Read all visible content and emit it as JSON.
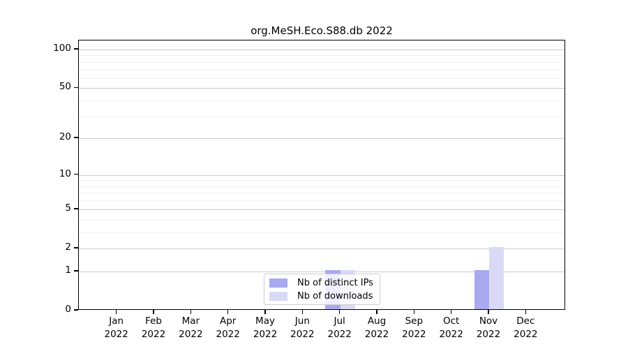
{
  "title": "org.MeSH.Eco.S88.db 2022",
  "chart_data": {
    "type": "bar",
    "title": "org.MeSH.Eco.S88.db 2022",
    "categories": [
      "Jan",
      "Feb",
      "Mar",
      "Apr",
      "May",
      "Jun",
      "Jul",
      "Aug",
      "Sep",
      "Oct",
      "Nov",
      "Dec"
    ],
    "category_year": "2022",
    "series": [
      {
        "name": "Nb of distinct IPs",
        "color": "#a9a9f0",
        "values": [
          0,
          0,
          0,
          0,
          0,
          0,
          1,
          0,
          0,
          0,
          1,
          0
        ]
      },
      {
        "name": "Nb of downloads",
        "color": "#dadaf7",
        "values": [
          0,
          0,
          0,
          0,
          0,
          0,
          1,
          0,
          0,
          0,
          2,
          0
        ]
      }
    ],
    "xlabel": "",
    "ylabel": "",
    "yscale": "log1p",
    "ylim": [
      0,
      118
    ],
    "y_major_ticks": [
      0,
      1,
      2,
      5,
      10,
      20,
      50,
      100
    ],
    "y_minor_gridlines": [
      3,
      4,
      6,
      7,
      8,
      9,
      30,
      40,
      60,
      70,
      80,
      90
    ],
    "grid": "horizontal",
    "legend_position": "lower center"
  }
}
